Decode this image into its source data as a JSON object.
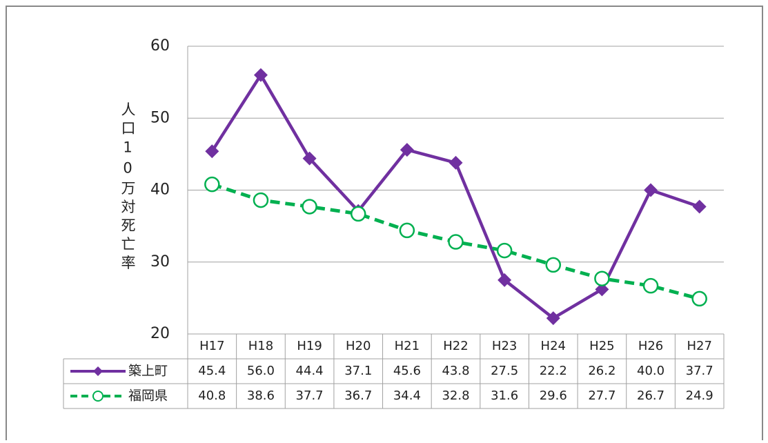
{
  "chart_data": {
    "type": "line",
    "y_label": "人口10万対死亡率",
    "categories": [
      "H17",
      "H18",
      "H19",
      "H20",
      "H21",
      "H22",
      "H23",
      "H24",
      "H25",
      "H26",
      "H27"
    ],
    "series": [
      {
        "name": "築上町",
        "color": "#7030a0",
        "marker": "diamond",
        "dashed": false,
        "values": [
          45.4,
          56.0,
          44.4,
          37.1,
          45.6,
          43.8,
          27.5,
          22.2,
          26.2,
          40.0,
          37.7
        ],
        "value_labels": [
          "45.4",
          "56.0",
          "44.4",
          "37.1",
          "45.6",
          "43.8",
          "27.5",
          "22.2",
          "26.2",
          "40.0",
          "37.7"
        ]
      },
      {
        "name": "福岡県",
        "color": "#00b050",
        "marker": "circle",
        "dashed": true,
        "values": [
          40.8,
          38.6,
          37.7,
          36.7,
          34.4,
          32.8,
          31.6,
          29.6,
          27.7,
          26.7,
          24.9
        ],
        "value_labels": [
          "40.8",
          "38.6",
          "37.7",
          "36.7",
          "34.4",
          "32.8",
          "31.6",
          "29.6",
          "27.7",
          "26.7",
          "24.9"
        ]
      }
    ],
    "ylim": [
      20,
      60
    ],
    "yticks": [
      20,
      30,
      40,
      50,
      60
    ],
    "grid": true
  }
}
